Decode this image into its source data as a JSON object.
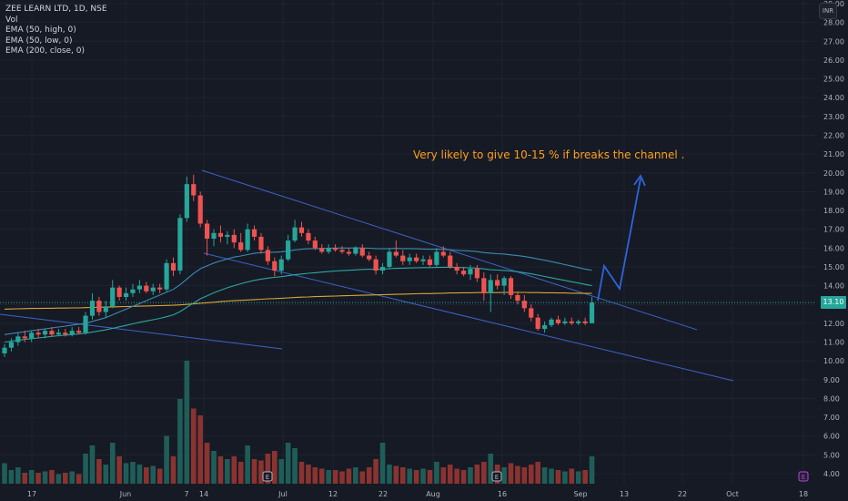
{
  "window": {
    "title": "ZEE LEARN LTD, 1D, NSE"
  },
  "legend": {
    "title": "ZEE LEARN LTD, 1D, NSE",
    "items": [
      "Vol",
      "EMA (50, high, 0)",
      "EMA (50, low, 0)",
      "EMA (200, close, 0)"
    ]
  },
  "annotation": "Very likely to give 10-15 % if breaks the channel .",
  "price_tag": "13.10",
  "currency_button": "INR",
  "colors": {
    "up": "#26a69a",
    "down": "#ef5350",
    "vol_up": "#1f5e58",
    "vol_down": "#8a3331",
    "ema_high": "#3b8bb0",
    "ema_low": "#2ea6a0",
    "ema200": "#d8a535",
    "channel": "#3d63c9",
    "arrow": "#2f64e0",
    "annotation": "#ff9f1a"
  },
  "chart_data": {
    "type": "candlestick",
    "symbol": "ZEE LEARN LTD",
    "interval": "1D",
    "exchange": "NSE",
    "currency": "INR",
    "y_ticks": [
      "4.00",
      "5.00",
      "6.00",
      "7.00",
      "8.00",
      "9.00",
      "10.00",
      "11.00",
      "12.00",
      "13.00",
      "14.00",
      "15.00",
      "16.00",
      "17.00",
      "18.00",
      "19.00",
      "20.00",
      "21.00",
      "22.00",
      "23.00",
      "24.00",
      "25.00",
      "26.00",
      "27.00",
      "28.00",
      "29.00"
    ],
    "x_ticks": [
      "17",
      "Jun",
      "7",
      "14",
      "Jul",
      "12",
      "22",
      "Aug",
      "16",
      "Sep",
      "13",
      "22",
      "Oct",
      "18"
    ],
    "ylim": [
      4.0,
      29.0
    ],
    "last_price": 13.1,
    "candles": [
      {
        "o": 10.4,
        "h": 10.9,
        "l": 10.2,
        "c": 10.7
      },
      {
        "o": 10.7,
        "h": 11.2,
        "l": 10.5,
        "c": 11.0
      },
      {
        "o": 11.0,
        "h": 11.5,
        "l": 10.8,
        "c": 11.3
      },
      {
        "o": 11.3,
        "h": 11.6,
        "l": 11.0,
        "c": 11.2
      },
      {
        "o": 11.2,
        "h": 11.6,
        "l": 11.0,
        "c": 11.5
      },
      {
        "o": 11.5,
        "h": 11.7,
        "l": 11.2,
        "c": 11.4
      },
      {
        "o": 11.4,
        "h": 11.7,
        "l": 11.2,
        "c": 11.6
      },
      {
        "o": 11.6,
        "h": 11.8,
        "l": 11.3,
        "c": 11.4
      },
      {
        "o": 11.4,
        "h": 11.7,
        "l": 11.3,
        "c": 11.5
      },
      {
        "o": 11.5,
        "h": 11.7,
        "l": 11.3,
        "c": 11.4
      },
      {
        "o": 11.4,
        "h": 11.8,
        "l": 11.3,
        "c": 11.6
      },
      {
        "o": 11.6,
        "h": 11.8,
        "l": 11.4,
        "c": 11.5
      },
      {
        "o": 11.5,
        "h": 12.6,
        "l": 11.4,
        "c": 12.4
      },
      {
        "o": 12.4,
        "h": 13.6,
        "l": 12.2,
        "c": 13.2
      },
      {
        "o": 13.2,
        "h": 13.4,
        "l": 12.4,
        "c": 12.6
      },
      {
        "o": 12.6,
        "h": 13.2,
        "l": 12.3,
        "c": 12.9
      },
      {
        "o": 12.9,
        "h": 14.3,
        "l": 12.8,
        "c": 13.9
      },
      {
        "o": 13.9,
        "h": 14.0,
        "l": 13.2,
        "c": 13.4
      },
      {
        "o": 13.4,
        "h": 13.9,
        "l": 13.2,
        "c": 13.6
      },
      {
        "o": 13.6,
        "h": 14.1,
        "l": 13.4,
        "c": 13.8
      },
      {
        "o": 13.8,
        "h": 14.3,
        "l": 13.6,
        "c": 14.0
      },
      {
        "o": 14.0,
        "h": 14.2,
        "l": 13.6,
        "c": 13.7
      },
      {
        "o": 13.7,
        "h": 14.1,
        "l": 13.5,
        "c": 13.9
      },
      {
        "o": 13.9,
        "h": 14.1,
        "l": 13.6,
        "c": 13.8
      },
      {
        "o": 13.8,
        "h": 15.4,
        "l": 13.7,
        "c": 15.2
      },
      {
        "o": 15.2,
        "h": 15.5,
        "l": 14.5,
        "c": 14.8
      },
      {
        "o": 14.8,
        "h": 17.8,
        "l": 14.6,
        "c": 17.6
      },
      {
        "o": 17.6,
        "h": 19.8,
        "l": 17.4,
        "c": 19.4
      },
      {
        "o": 19.4,
        "h": 19.9,
        "l": 18.5,
        "c": 18.8
      },
      {
        "o": 18.8,
        "h": 19.0,
        "l": 17.1,
        "c": 17.3
      },
      {
        "o": 17.3,
        "h": 17.5,
        "l": 15.6,
        "c": 16.5
      },
      {
        "o": 16.5,
        "h": 17.0,
        "l": 16.1,
        "c": 16.8
      },
      {
        "o": 16.8,
        "h": 17.2,
        "l": 16.3,
        "c": 16.6
      },
      {
        "o": 16.6,
        "h": 16.9,
        "l": 16.2,
        "c": 16.7
      },
      {
        "o": 16.7,
        "h": 17.0,
        "l": 16.0,
        "c": 16.3
      },
      {
        "o": 16.3,
        "h": 16.8,
        "l": 15.8,
        "c": 15.9
      },
      {
        "o": 15.9,
        "h": 17.3,
        "l": 15.8,
        "c": 17.0
      },
      {
        "o": 17.0,
        "h": 17.2,
        "l": 16.4,
        "c": 16.6
      },
      {
        "o": 16.6,
        "h": 16.8,
        "l": 15.7,
        "c": 15.9
      },
      {
        "o": 15.9,
        "h": 16.1,
        "l": 15.1,
        "c": 15.3
      },
      {
        "o": 15.3,
        "h": 15.5,
        "l": 14.5,
        "c": 14.8
      },
      {
        "o": 14.8,
        "h": 15.6,
        "l": 14.6,
        "c": 15.4
      },
      {
        "o": 15.4,
        "h": 16.7,
        "l": 15.3,
        "c": 16.4
      },
      {
        "o": 16.4,
        "h": 17.5,
        "l": 16.3,
        "c": 17.1
      },
      {
        "o": 17.1,
        "h": 17.4,
        "l": 16.6,
        "c": 16.8
      },
      {
        "o": 16.8,
        "h": 17.0,
        "l": 16.2,
        "c": 16.4
      },
      {
        "o": 16.4,
        "h": 16.6,
        "l": 15.9,
        "c": 16.0
      },
      {
        "o": 16.0,
        "h": 16.2,
        "l": 15.7,
        "c": 15.8
      },
      {
        "o": 15.8,
        "h": 16.2,
        "l": 15.7,
        "c": 16.0
      },
      {
        "o": 16.0,
        "h": 16.2,
        "l": 15.8,
        "c": 15.9
      },
      {
        "o": 15.9,
        "h": 16.1,
        "l": 15.7,
        "c": 15.8
      },
      {
        "o": 15.8,
        "h": 16.0,
        "l": 15.6,
        "c": 15.7
      },
      {
        "o": 15.7,
        "h": 16.1,
        "l": 15.6,
        "c": 16.0
      },
      {
        "o": 16.0,
        "h": 16.2,
        "l": 15.5,
        "c": 15.6
      },
      {
        "o": 15.6,
        "h": 15.8,
        "l": 15.3,
        "c": 15.4
      },
      {
        "o": 15.4,
        "h": 15.6,
        "l": 14.6,
        "c": 14.8
      },
      {
        "o": 14.8,
        "h": 15.2,
        "l": 14.6,
        "c": 15.0
      },
      {
        "o": 15.0,
        "h": 16.0,
        "l": 14.9,
        "c": 15.8
      },
      {
        "o": 15.8,
        "h": 16.4,
        "l": 15.5,
        "c": 15.6
      },
      {
        "o": 15.6,
        "h": 15.9,
        "l": 15.1,
        "c": 15.3
      },
      {
        "o": 15.3,
        "h": 15.7,
        "l": 15.1,
        "c": 15.5
      },
      {
        "o": 15.5,
        "h": 15.7,
        "l": 15.2,
        "c": 15.3
      },
      {
        "o": 15.3,
        "h": 15.6,
        "l": 15.1,
        "c": 15.4
      },
      {
        "o": 15.4,
        "h": 15.6,
        "l": 15.0,
        "c": 15.1
      },
      {
        "o": 15.1,
        "h": 16.0,
        "l": 15.0,
        "c": 15.8
      },
      {
        "o": 15.8,
        "h": 16.1,
        "l": 15.5,
        "c": 15.6
      },
      {
        "o": 15.6,
        "h": 15.8,
        "l": 14.9,
        "c": 15.0
      },
      {
        "o": 15.0,
        "h": 15.2,
        "l": 14.6,
        "c": 14.8
      },
      {
        "o": 14.8,
        "h": 15.0,
        "l": 14.5,
        "c": 14.6
      },
      {
        "o": 14.6,
        "h": 15.1,
        "l": 14.3,
        "c": 14.9
      },
      {
        "o": 14.9,
        "h": 15.1,
        "l": 14.2,
        "c": 14.4
      },
      {
        "o": 14.4,
        "h": 14.7,
        "l": 13.2,
        "c": 13.6
      },
      {
        "o": 13.6,
        "h": 14.6,
        "l": 12.6,
        "c": 14.3
      },
      {
        "o": 14.3,
        "h": 14.6,
        "l": 13.8,
        "c": 14.0
      },
      {
        "o": 14.0,
        "h": 14.5,
        "l": 13.5,
        "c": 14.4
      },
      {
        "o": 14.4,
        "h": 14.5,
        "l": 13.3,
        "c": 13.5
      },
      {
        "o": 13.5,
        "h": 13.7,
        "l": 13.0,
        "c": 13.2
      },
      {
        "o": 13.2,
        "h": 13.5,
        "l": 12.6,
        "c": 12.8
      },
      {
        "o": 12.8,
        "h": 13.0,
        "l": 12.1,
        "c": 12.3
      },
      {
        "o": 12.3,
        "h": 12.5,
        "l": 11.6,
        "c": 11.7
      },
      {
        "o": 11.7,
        "h": 12.1,
        "l": 11.5,
        "c": 11.9
      },
      {
        "o": 11.9,
        "h": 12.3,
        "l": 11.8,
        "c": 12.2
      },
      {
        "o": 12.2,
        "h": 12.4,
        "l": 11.9,
        "c": 12.0
      },
      {
        "o": 12.0,
        "h": 12.3,
        "l": 11.9,
        "c": 12.1
      },
      {
        "o": 12.1,
        "h": 12.3,
        "l": 11.9,
        "c": 12.0
      },
      {
        "o": 12.0,
        "h": 12.2,
        "l": 11.9,
        "c": 12.1
      },
      {
        "o": 12.1,
        "h": 12.3,
        "l": 11.9,
        "c": 12.0
      },
      {
        "o": 12.0,
        "h": 13.4,
        "l": 12.0,
        "c": 13.1
      }
    ],
    "volume": [
      0.15,
      0.1,
      0.12,
      0.08,
      0.1,
      0.08,
      0.09,
      0.1,
      0.07,
      0.08,
      0.09,
      0.07,
      0.22,
      0.28,
      0.18,
      0.14,
      0.3,
      0.2,
      0.15,
      0.16,
      0.14,
      0.12,
      0.13,
      0.11,
      0.35,
      0.2,
      0.62,
      0.9,
      0.55,
      0.5,
      0.3,
      0.24,
      0.2,
      0.18,
      0.2,
      0.16,
      0.28,
      0.18,
      0.17,
      0.22,
      0.24,
      0.18,
      0.3,
      0.26,
      0.16,
      0.14,
      0.12,
      0.11,
      0.1,
      0.1,
      0.09,
      0.11,
      0.12,
      0.09,
      0.12,
      0.18,
      0.3,
      0.14,
      0.13,
      0.12,
      0.11,
      0.1,
      0.11,
      0.1,
      0.16,
      0.12,
      0.14,
      0.11,
      0.1,
      0.12,
      0.14,
      0.16,
      0.22,
      0.14,
      0.12,
      0.15,
      0.13,
      0.12,
      0.14,
      0.16,
      0.12,
      0.11,
      0.1,
      0.09,
      0.11,
      0.09,
      0.1,
      0.2
    ],
    "ema_high": [
      11.4,
      11.45,
      11.5,
      11.55,
      11.6,
      11.65,
      11.7,
      11.75,
      11.8,
      11.85,
      11.9,
      11.95,
      12.0,
      12.1,
      12.2,
      12.3,
      12.45,
      12.6,
      12.75,
      12.9,
      13.05,
      13.2,
      13.35,
      13.5,
      13.65,
      13.8,
      14.05,
      14.35,
      14.65,
      14.9,
      15.05,
      15.2,
      15.32,
      15.42,
      15.52,
      15.58,
      15.65,
      15.72,
      15.76,
      15.78,
      15.78,
      15.8,
      15.84,
      15.9,
      15.94,
      15.96,
      15.97,
      15.98,
      15.99,
      16.0,
      16.0,
      16.0,
      16.01,
      16.0,
      15.99,
      15.97,
      15.96,
      15.97,
      15.98,
      15.97,
      15.97,
      15.96,
      15.95,
      15.94,
      15.94,
      15.93,
      15.91,
      15.88,
      15.86,
      15.84,
      15.81,
      15.76,
      15.73,
      15.7,
      15.68,
      15.64,
      15.6,
      15.55,
      15.49,
      15.42,
      15.35,
      15.28,
      15.2,
      15.12,
      15.04,
      14.96,
      14.88,
      14.82
    ],
    "ema_low": [
      11.0,
      11.05,
      11.1,
      11.14,
      11.18,
      11.22,
      11.26,
      11.3,
      11.34,
      11.37,
      11.4,
      11.43,
      11.47,
      11.53,
      11.59,
      11.65,
      11.73,
      11.81,
      11.89,
      11.97,
      12.05,
      12.12,
      12.19,
      12.26,
      12.35,
      12.45,
      12.62,
      12.85,
      13.08,
      13.3,
      13.46,
      13.62,
      13.76,
      13.89,
      14.0,
      14.1,
      14.2,
      14.28,
      14.35,
      14.4,
      14.44,
      14.48,
      14.53,
      14.58,
      14.62,
      14.66,
      14.69,
      14.72,
      14.75,
      14.78,
      14.8,
      14.82,
      14.84,
      14.86,
      14.87,
      14.87,
      14.88,
      14.9,
      14.92,
      14.93,
      14.94,
      14.95,
      14.96,
      14.96,
      14.97,
      14.98,
      14.98,
      14.97,
      14.96,
      14.95,
      14.93,
      14.89,
      14.85,
      14.83,
      14.81,
      14.78,
      14.74,
      14.69,
      14.63,
      14.56,
      14.49,
      14.42,
      14.35,
      14.28,
      14.21,
      14.14,
      14.07,
      14.0
    ],
    "ema200": [
      12.75,
      12.76,
      12.77,
      12.78,
      12.79,
      12.79,
      12.8,
      12.8,
      12.81,
      12.81,
      12.82,
      12.82,
      12.83,
      12.84,
      12.85,
      12.86,
      12.87,
      12.88,
      12.89,
      12.9,
      12.91,
      12.92,
      12.93,
      12.94,
      12.95,
      12.96,
      12.98,
      13.0,
      13.03,
      13.06,
      13.09,
      13.12,
      13.15,
      13.18,
      13.2,
      13.22,
      13.24,
      13.26,
      13.28,
      13.3,
      13.31,
      13.33,
      13.35,
      13.37,
      13.39,
      13.4,
      13.42,
      13.43,
      13.44,
      13.45,
      13.46,
      13.47,
      13.48,
      13.49,
      13.5,
      13.51,
      13.52,
      13.53,
      13.54,
      13.55,
      13.56,
      13.57,
      13.58,
      13.58,
      13.59,
      13.6,
      13.61,
      13.61,
      13.62,
      13.62,
      13.63,
      13.63,
      13.63,
      13.63,
      13.64,
      13.64,
      13.64,
      13.64,
      13.63,
      13.63,
      13.62,
      13.62,
      13.61,
      13.61,
      13.6,
      13.6,
      13.59,
      13.59
    ]
  }
}
